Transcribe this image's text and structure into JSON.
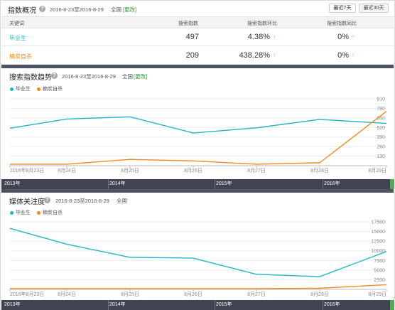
{
  "overview": {
    "title": "指数概况",
    "date_range": "2016-8-23至2016-8-29",
    "region": "全国",
    "change": "[更改]",
    "btn_7": "最近7天",
    "btn_30": "最近30天",
    "columns": [
      "关键词",
      "搜索指数",
      "搜索指数环比",
      "搜索指数同比"
    ],
    "rows": [
      {
        "keyword": "毕业生",
        "index": "497",
        "mom": "4.38%",
        "yoy": "0%",
        "color": "#1fb5c4"
      },
      {
        "keyword": "楠炭自杀",
        "index": "209",
        "mom": "438.28%",
        "yoy": "0%",
        "color": "#f08a1c"
      }
    ]
  },
  "trend": {
    "title": "搜索指数趋势",
    "date_range": "2016-8-23至2016-8-29",
    "region": "全国",
    "change": "[更改]",
    "legend": [
      "毕业生",
      "楠炭自杀"
    ],
    "timeline": [
      "2013年",
      "2014年",
      "2015年",
      "2016年"
    ]
  },
  "media": {
    "title": "媒体关注度",
    "date_range": "2016-8-23至2016-8-29",
    "region": "全国",
    "legend": [
      "毕业生",
      "楠炭自杀"
    ],
    "timeline": [
      "2013年",
      "2014年",
      "2015年",
      "2016年"
    ]
  },
  "colors": {
    "teal": "#1fb5c4",
    "orange": "#f08a1c",
    "timeline_bg": "#3f4450",
    "window": "#44b844"
  },
  "chart_data": [
    {
      "type": "line",
      "title": "搜索指数趋势",
      "x": [
        "2016年8月23日",
        "8月24日",
        "8月25日",
        "8月26日",
        "8月27日",
        "8月28日",
        "8月29日"
      ],
      "y_ticks": [
        130,
        260,
        390,
        520,
        650,
        780,
        910
      ],
      "ylim": [
        0,
        910
      ],
      "series": [
        {
          "name": "毕业生",
          "color": "#1fb5c4",
          "values": [
            510,
            635,
            665,
            445,
            515,
            630,
            575
          ]
        },
        {
          "name": "楠炭自杀",
          "color": "#f08a1c",
          "values": [
            20,
            20,
            85,
            65,
            20,
            40,
            740
          ]
        }
      ]
    },
    {
      "type": "line",
      "title": "媒体关注度",
      "x": [
        "2016年8月23日",
        "8月24日",
        "8月25日",
        "8月26日",
        "8月27日",
        "8月28日",
        "8月29日"
      ],
      "y_ticks": [
        2500,
        5000,
        7500,
        10000,
        12500,
        15000,
        17500
      ],
      "ylim": [
        0,
        17500
      ],
      "series": [
        {
          "name": "毕业生",
          "color": "#1fb5c4",
          "values": [
            15800,
            11700,
            8300,
            8100,
            3900,
            3300,
            9800
          ]
        },
        {
          "name": "楠炭自杀",
          "color": "#f08a1c",
          "values": [
            200,
            200,
            200,
            200,
            200,
            300,
            1200
          ]
        }
      ]
    }
  ]
}
